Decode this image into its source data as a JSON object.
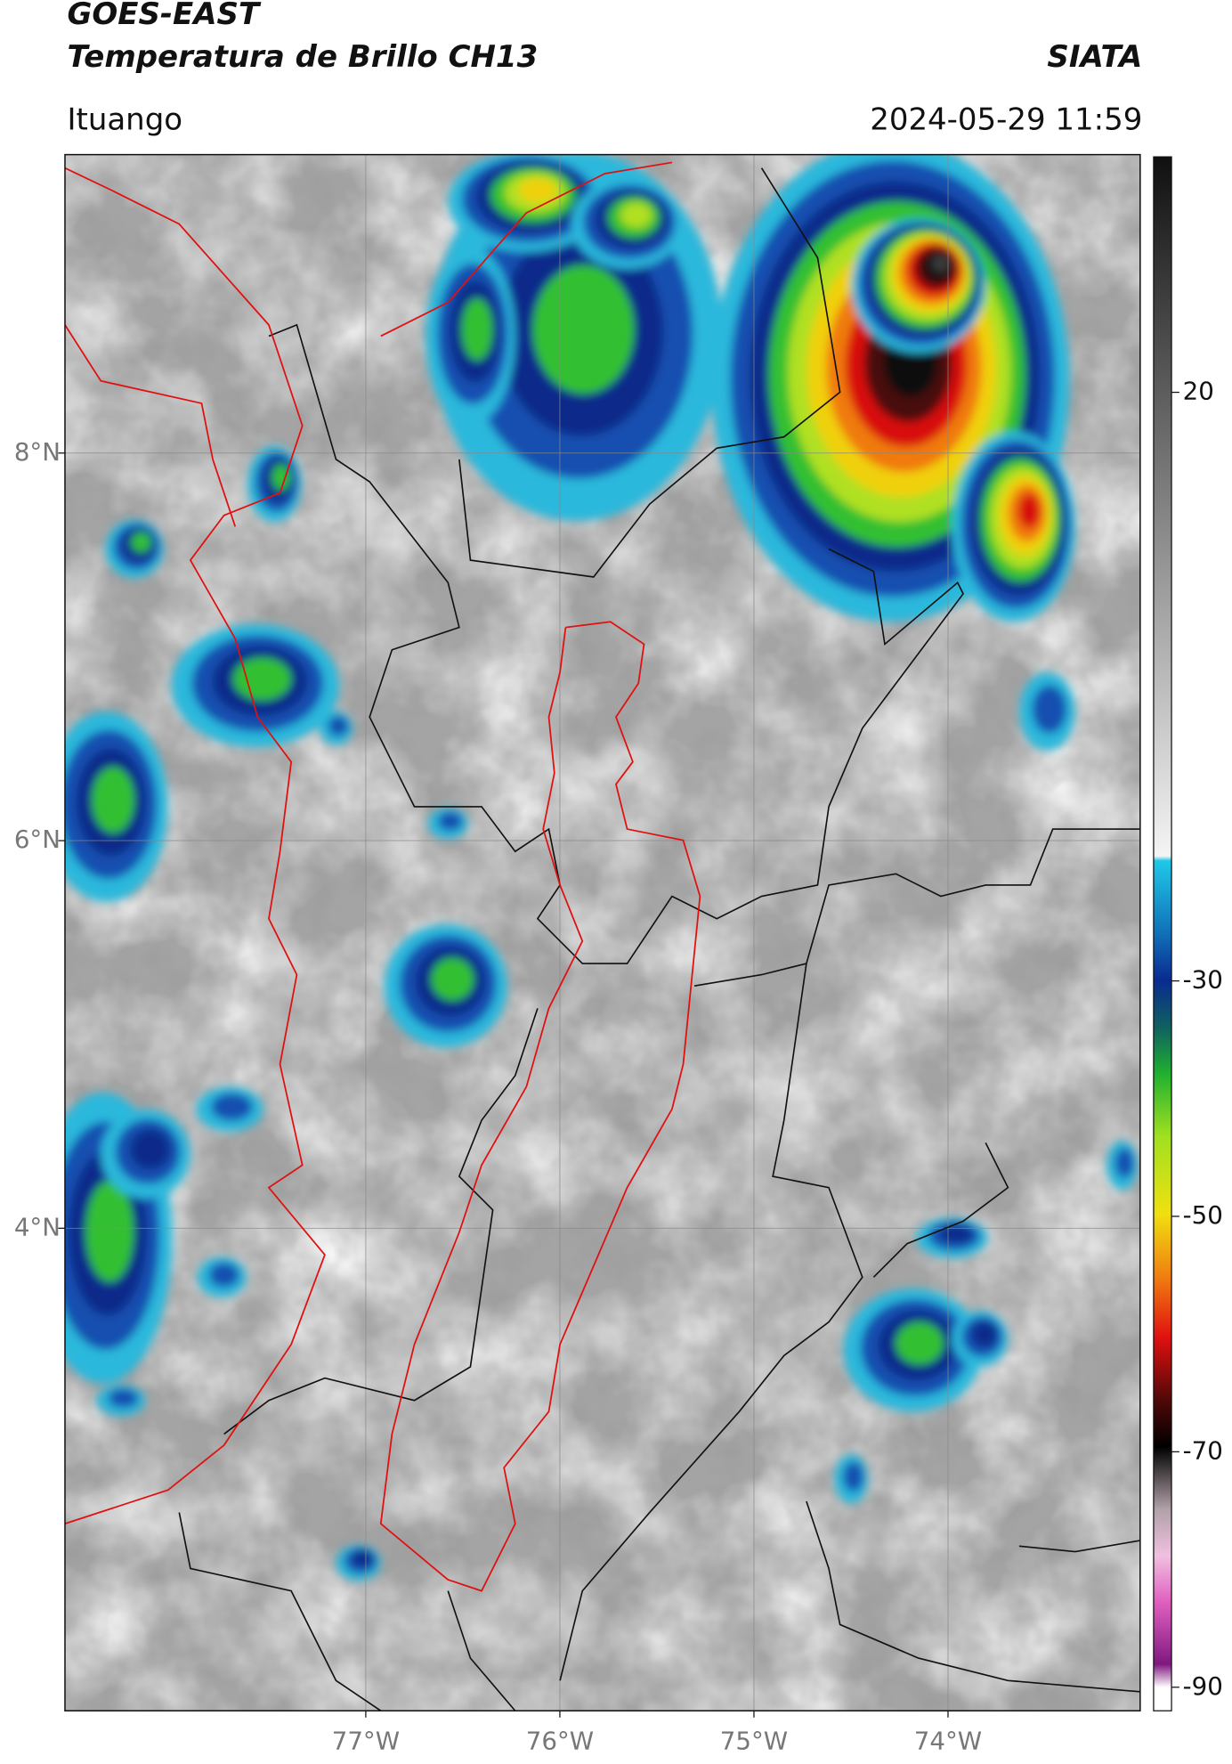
{
  "header": {
    "title": "GOES-EAST",
    "subtitle": "Temperatura de Brillo CH13",
    "org": "SIATA",
    "location": "Ituango",
    "datetime": "2024-05-29 11:59"
  },
  "map": {
    "lonlim": [
      -78.55,
      -73.01
    ],
    "latlim": [
      1.51,
      9.54
    ],
    "lon_ticks": [
      {
        "value": -77,
        "label": "77°W"
      },
      {
        "value": -76,
        "label": "76°W"
      },
      {
        "value": -75,
        "label": "75°W"
      },
      {
        "value": -74,
        "label": "74°W"
      }
    ],
    "lat_ticks": [
      {
        "value": 8,
        "label": "8°N"
      },
      {
        "value": 6,
        "label": "6°N"
      },
      {
        "value": 4,
        "label": "4°N"
      }
    ]
  },
  "colorbar": {
    "lim": [
      -92,
      40
    ],
    "ticks": [
      20,
      -30,
      -50,
      -70,
      -90
    ]
  }
}
